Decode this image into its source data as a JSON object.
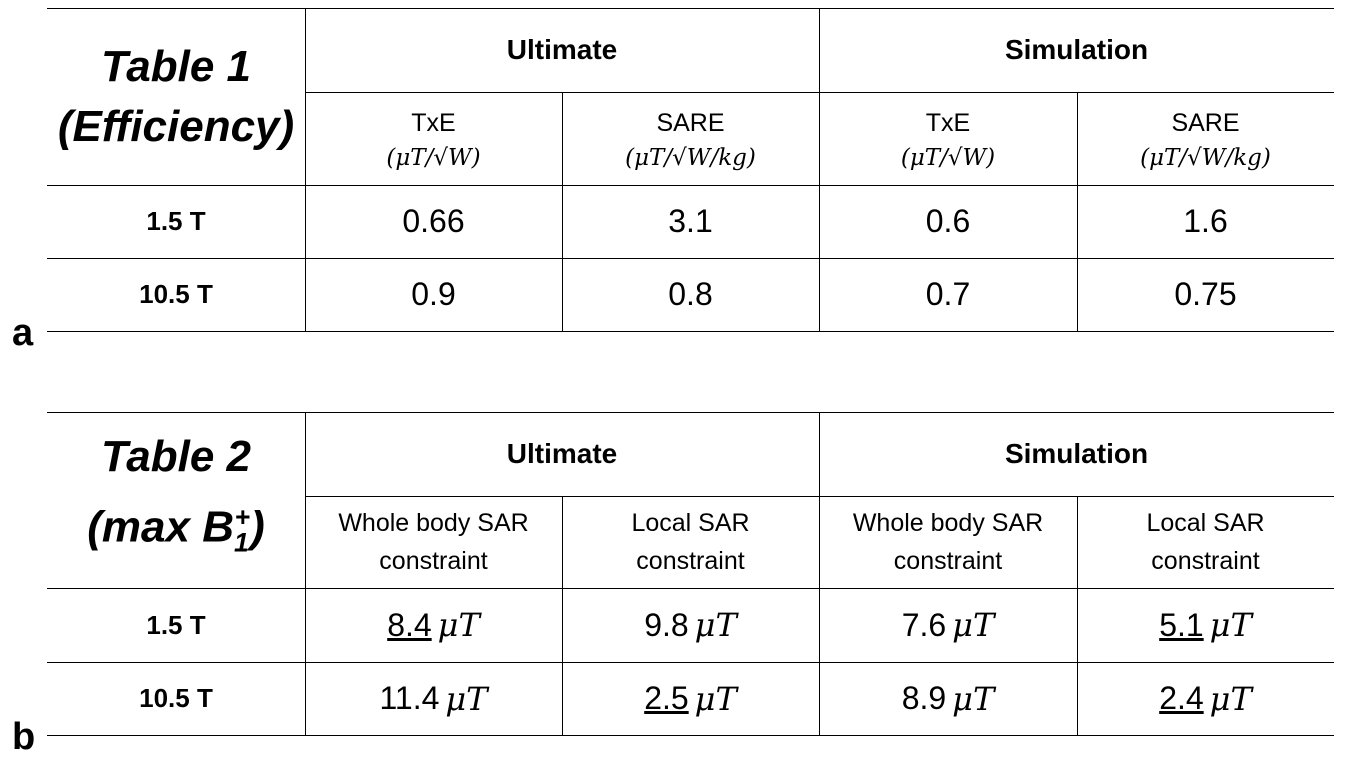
{
  "table1": {
    "title_line1": "Table 1",
    "title_line2": "(Efficiency)",
    "groups": [
      "Ultimate",
      "Simulation"
    ],
    "subheaders": [
      {
        "label": "TxE",
        "unit": "(μT/√W)"
      },
      {
        "label": "SARE",
        "unit": "(μT/√W/kg)"
      },
      {
        "label": "TxE",
        "unit": "(μT/√W)"
      },
      {
        "label": "SARE",
        "unit": "(μT/√W/kg)"
      }
    ],
    "rows": [
      {
        "label": "1.5 T",
        "values": [
          "0.66",
          "3.1",
          "0.6",
          "1.6"
        ]
      },
      {
        "label": "10.5 T",
        "values": [
          "0.9",
          "0.8",
          "0.7",
          "0.75"
        ]
      }
    ],
    "panel_letter": "a"
  },
  "table2": {
    "title_line1": "Table 2",
    "title_prefix": "(max B",
    "title_sub": "1",
    "title_sup": "+",
    "title_suffix": ")",
    "groups": [
      "Ultimate",
      "Simulation"
    ],
    "subheaders": [
      {
        "line1": "Whole body SAR",
        "line2": "constraint"
      },
      {
        "line1": "Local SAR",
        "line2": "constraint"
      },
      {
        "line1": "Whole body SAR",
        "line2": "constraint"
      },
      {
        "line1": "Local SAR",
        "line2": "constraint"
      }
    ],
    "unit": "μT",
    "rows": [
      {
        "label": "1.5 T",
        "values": [
          {
            "num": "8.4",
            "underline": true
          },
          {
            "num": "9.8",
            "underline": false
          },
          {
            "num": "7.6",
            "underline": false
          },
          {
            "num": "5.1",
            "underline": true
          }
        ]
      },
      {
        "label": "10.5 T",
        "values": [
          {
            "num": "11.4",
            "underline": false
          },
          {
            "num": "2.5",
            "underline": true
          },
          {
            "num": "8.9",
            "underline": false
          },
          {
            "num": "2.4",
            "underline": true
          }
        ]
      }
    ],
    "panel_letter": "b"
  }
}
